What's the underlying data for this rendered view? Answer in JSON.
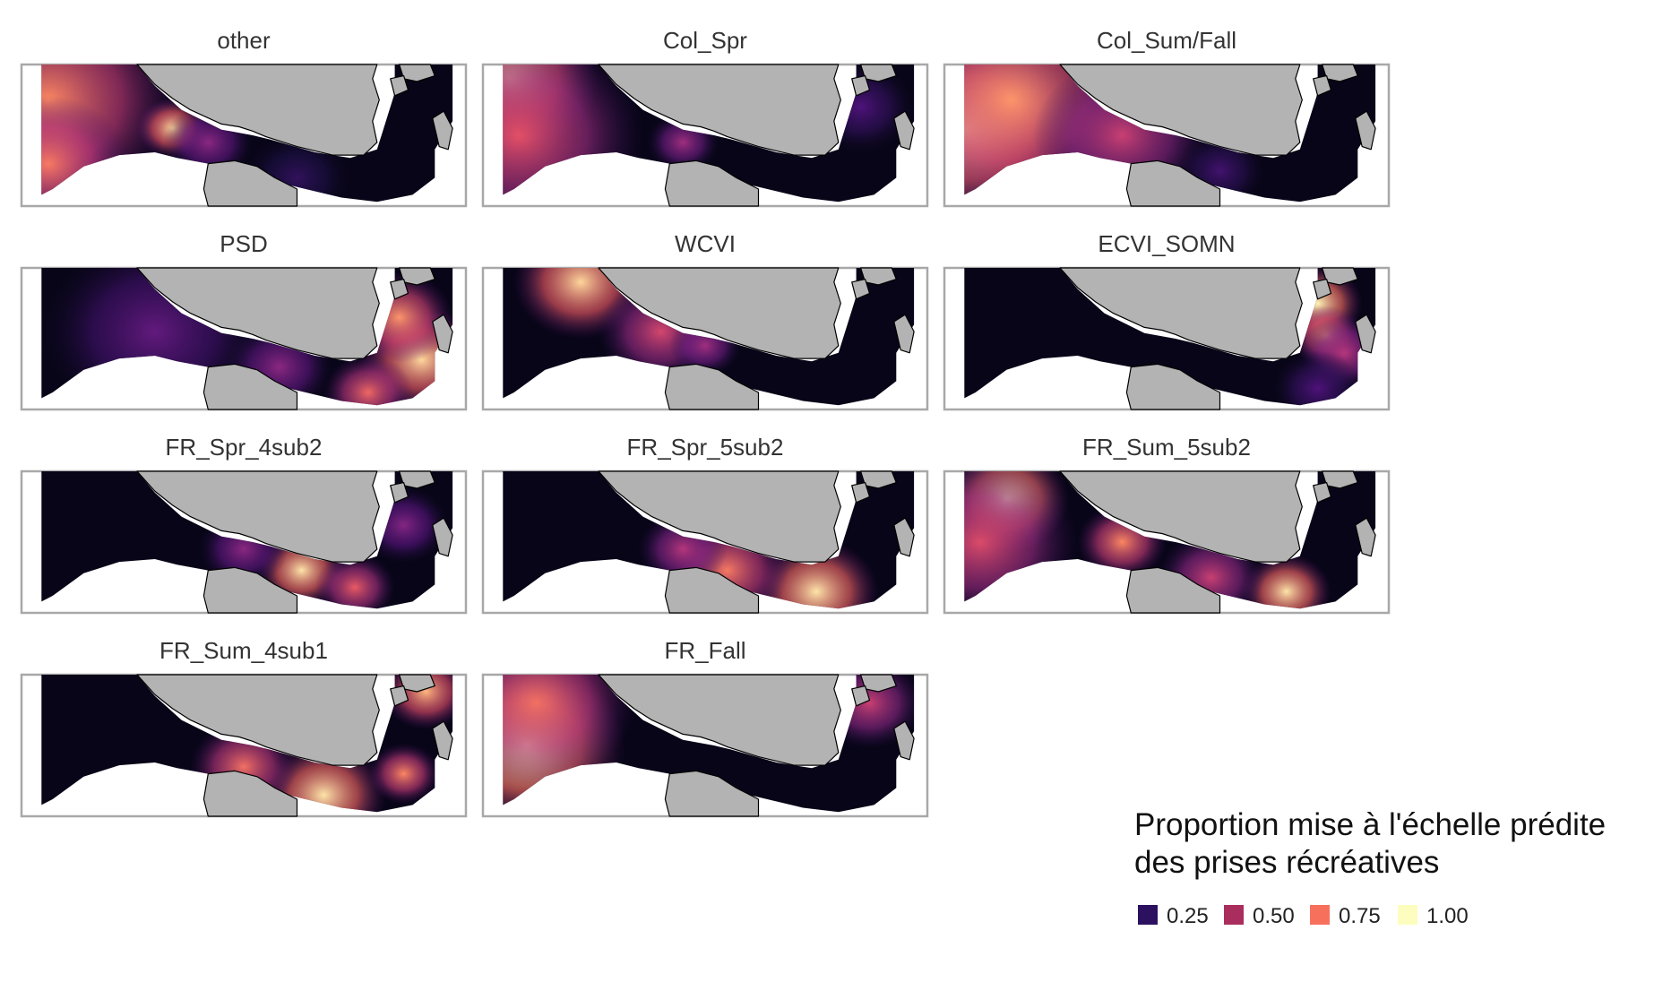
{
  "panels": [
    {
      "title": "other",
      "hotspots": [
        [
          0.06,
          0.25,
          0.3,
          0.75
        ],
        [
          0.06,
          0.7,
          0.18,
          0.72
        ],
        [
          0.34,
          0.45,
          0.08,
          0.92
        ],
        [
          0.42,
          0.55,
          0.1,
          0.4
        ],
        [
          0.62,
          0.8,
          0.12,
          0.18
        ]
      ]
    },
    {
      "title": "Col_Spr",
      "hotspots": [
        [
          0.06,
          0.1,
          0.2,
          0.92
        ],
        [
          0.08,
          0.5,
          0.28,
          0.62
        ],
        [
          0.45,
          0.55,
          0.08,
          0.45
        ],
        [
          0.85,
          0.3,
          0.12,
          0.25
        ]
      ]
    },
    {
      "title": "Col_Sum/Fall",
      "hotspots": [
        [
          0.05,
          0.45,
          0.25,
          0.95
        ],
        [
          0.15,
          0.25,
          0.3,
          0.78
        ],
        [
          0.4,
          0.5,
          0.2,
          0.55
        ],
        [
          0.62,
          0.75,
          0.1,
          0.22
        ]
      ]
    },
    {
      "title": "PSD",
      "hotspots": [
        [
          0.9,
          0.65,
          0.14,
          0.92
        ],
        [
          0.85,
          0.35,
          0.12,
          0.78
        ],
        [
          0.78,
          0.88,
          0.1,
          0.68
        ],
        [
          0.3,
          0.45,
          0.25,
          0.3
        ],
        [
          0.58,
          0.7,
          0.12,
          0.4
        ]
      ]
    },
    {
      "title": "WCVI",
      "hotspots": [
        [
          0.22,
          0.1,
          0.15,
          0.92
        ],
        [
          0.4,
          0.45,
          0.14,
          0.58
        ],
        [
          0.5,
          0.55,
          0.08,
          0.45
        ]
      ]
    },
    {
      "title": "ECVI_SOMN",
      "hotspots": [
        [
          0.84,
          0.25,
          0.1,
          0.98
        ],
        [
          0.86,
          0.48,
          0.08,
          0.8
        ],
        [
          0.9,
          0.6,
          0.1,
          0.5
        ],
        [
          0.84,
          0.85,
          0.1,
          0.25
        ]
      ]
    },
    {
      "title": "FR_Spr_4sub2",
      "hotspots": [
        [
          0.63,
          0.7,
          0.1,
          0.95
        ],
        [
          0.75,
          0.82,
          0.09,
          0.65
        ],
        [
          0.5,
          0.55,
          0.1,
          0.4
        ],
        [
          0.86,
          0.38,
          0.1,
          0.38
        ]
      ]
    },
    {
      "title": "FR_Spr_5sub2",
      "hotspots": [
        [
          0.75,
          0.85,
          0.14,
          0.95
        ],
        [
          0.55,
          0.7,
          0.14,
          0.72
        ],
        [
          0.45,
          0.55,
          0.1,
          0.5
        ]
      ]
    },
    {
      "title": "FR_Sum_5sub2",
      "hotspots": [
        [
          0.14,
          0.2,
          0.14,
          0.98
        ],
        [
          0.08,
          0.5,
          0.22,
          0.6
        ],
        [
          0.4,
          0.5,
          0.1,
          0.75
        ],
        [
          0.77,
          0.85,
          0.1,
          0.95
        ],
        [
          0.6,
          0.75,
          0.12,
          0.55
        ]
      ]
    },
    {
      "title": "FR_Sum_4sub1",
      "hotspots": [
        [
          0.68,
          0.85,
          0.14,
          0.95
        ],
        [
          0.5,
          0.65,
          0.12,
          0.7
        ],
        [
          0.86,
          0.7,
          0.08,
          0.75
        ],
        [
          0.91,
          0.12,
          0.1,
          0.85
        ]
      ]
    },
    {
      "title": "FR_Fall",
      "hotspots": [
        [
          0.1,
          0.5,
          0.22,
          0.98
        ],
        [
          0.12,
          0.2,
          0.22,
          0.7
        ],
        [
          0.87,
          0.2,
          0.12,
          0.55
        ]
      ]
    }
  ],
  "legend": {
    "title_line1": "Proportion mise à l'échelle prédite",
    "title_line2": "des prises récréatives",
    "items": [
      {
        "label": "0.25",
        "value": 0.25,
        "color": "#2C1160"
      },
      {
        "label": "0.50",
        "value": 0.5,
        "color": "#A92E5E"
      },
      {
        "label": "0.75",
        "value": 0.75,
        "color": "#F7705C"
      },
      {
        "label": "1.00",
        "value": 1.0,
        "color": "#FCFDBF"
      }
    ]
  },
  "colors": {
    "land": "#B3B3B3",
    "land_outline": "#000000",
    "panel_border": "#A8A8A8",
    "scale": "magma",
    "low": "#000004",
    "high": "#FCFDBF"
  }
}
